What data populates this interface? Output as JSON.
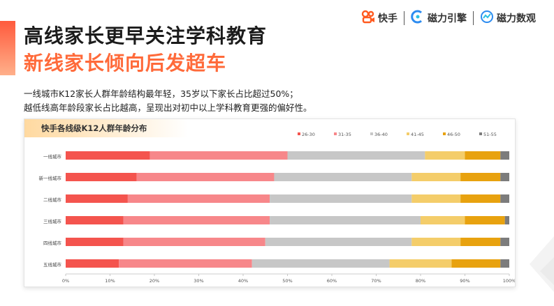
{
  "header": {
    "title_line1": "高线家长更早关注学科教育",
    "title_line2": "新线家长倾向后发超车",
    "description_line1": "一线城市K12家长人群年龄结构最年轻，35岁以下家长占比超过50%；",
    "description_line2": "越低线高年龄段家长占比越高，呈现出对初中以上学科教育更强的偏好性。"
  },
  "logos": [
    {
      "name": "快手",
      "icon": "kuaishou-icon"
    },
    {
      "name": "磁力引擎",
      "icon": "cili-engine-icon"
    },
    {
      "name": "磁力数观",
      "icon": "cili-shuguan-icon"
    }
  ],
  "chart_data": {
    "type": "bar",
    "orientation": "horizontal",
    "stacked": true,
    "title": "快手各线级K12人群年龄分布",
    "categories": [
      "一线城市",
      "新一线城市",
      "二线城市",
      "三线城市",
      "四线城市",
      "五线城市"
    ],
    "series": [
      {
        "name": "26-30",
        "color": "#f4544e",
        "values": [
          19,
          16,
          14,
          13,
          13,
          12
        ]
      },
      {
        "name": "31-35",
        "color": "#f7878a",
        "values": [
          31,
          31,
          32,
          33,
          32,
          30
        ]
      },
      {
        "name": "36-40",
        "color": "#c7c7c7",
        "values": [
          31,
          31,
          32,
          34,
          33,
          31
        ]
      },
      {
        "name": "41-45",
        "color": "#f4cd6a",
        "values": [
          9,
          11,
          11,
          10,
          11,
          14
        ]
      },
      {
        "name": "46-50",
        "color": "#e8a20f",
        "values": [
          8,
          9,
          9,
          9,
          9,
          11
        ]
      },
      {
        "name": "51-55",
        "color": "#7c7c7c",
        "values": [
          2,
          2,
          2,
          1,
          2,
          2
        ]
      }
    ],
    "x_ticks": [
      "0%",
      "10%",
      "20%",
      "30%",
      "40%",
      "50%",
      "60%",
      "70%",
      "80%",
      "90%",
      "100%"
    ],
    "xlim": [
      0,
      100
    ],
    "legend": "top-right",
    "grid": false
  }
}
